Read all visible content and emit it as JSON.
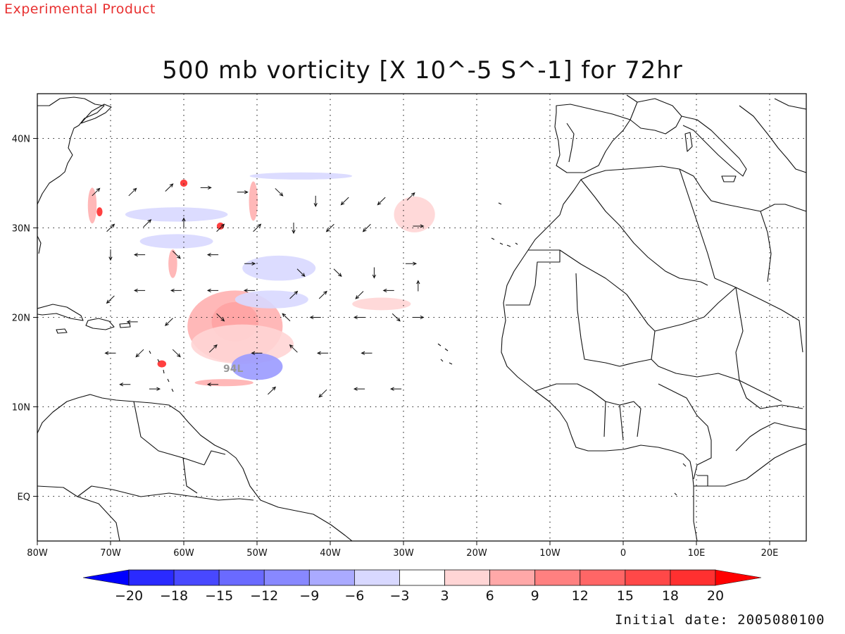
{
  "header": {
    "experimental_label": "Experimental Product",
    "title": "500 mb vorticity [X 10^-5 S^-1] for 72hr"
  },
  "footer": {
    "initial_date": "Initial date: 2005080100"
  },
  "map": {
    "region": "tropical-atlantic-west-africa",
    "lon_range": [
      -80,
      25
    ],
    "lat_range": [
      -5,
      45
    ],
    "grid": "dotted",
    "lon_ticks": [
      {
        "value": -80,
        "label": "80W"
      },
      {
        "value": -70,
        "label": "70W"
      },
      {
        "value": -60,
        "label": "60W"
      },
      {
        "value": -50,
        "label": "50W"
      },
      {
        "value": -40,
        "label": "40W"
      },
      {
        "value": -30,
        "label": "30W"
      },
      {
        "value": -20,
        "label": "20W"
      },
      {
        "value": -10,
        "label": "10W"
      },
      {
        "value": 0,
        "label": "0"
      },
      {
        "value": 10,
        "label": "10E"
      },
      {
        "value": 20,
        "label": "20E"
      }
    ],
    "lat_ticks": [
      {
        "value": 40,
        "label": "40N"
      },
      {
        "value": 30,
        "label": "30N"
      },
      {
        "value": 20,
        "label": "20N"
      },
      {
        "value": 10,
        "label": "10N"
      },
      {
        "value": 0,
        "label": "EQ"
      }
    ],
    "storm_label": "94L",
    "storm_center": {
      "lon": -53.5,
      "lat": 19.5
    },
    "vorticity_patches": [
      {
        "lon": -53,
        "lat": 19.5,
        "rlon": 3.2,
        "rlat": 2.2,
        "color": "#ff2b2b"
      },
      {
        "lon": -53,
        "lat": 19,
        "rlon": 6.5,
        "rlat": 4,
        "color": "#ffb0b0"
      },
      {
        "lon": -52,
        "lat": 17,
        "rlon": 7,
        "rlat": 2.2,
        "color": "#ffd5d5"
      },
      {
        "lon": -50,
        "lat": 14.5,
        "rlon": 3.5,
        "rlat": 1.5,
        "color": "#9a9aff"
      },
      {
        "lon": -47,
        "lat": 25.5,
        "rlon": 5,
        "rlat": 1.4,
        "color": "#d8d8ff"
      },
      {
        "lon": -48,
        "lat": 22,
        "rlon": 5,
        "rlat": 1,
        "color": "#d8d8ff"
      },
      {
        "lon": -28.5,
        "lat": 31.5,
        "rlon": 2.8,
        "rlat": 2,
        "color": "#ffd5d5"
      },
      {
        "lon": -33,
        "lat": 21.5,
        "rlon": 4,
        "rlat": 0.7,
        "color": "#ffd5d5"
      },
      {
        "lon": -44,
        "lat": 35.8,
        "rlon": 7,
        "rlat": 0.4,
        "color": "#d8d8ff"
      },
      {
        "lon": -61,
        "lat": 31.5,
        "rlon": 7,
        "rlat": 0.8,
        "color": "#d8d8ff"
      },
      {
        "lon": -61,
        "lat": 28.5,
        "rlon": 5,
        "rlat": 0.8,
        "color": "#d8d8ff"
      },
      {
        "lon": -72.5,
        "lat": 32.5,
        "rlon": 0.6,
        "rlat": 2,
        "color": "#ffb0b0"
      },
      {
        "lon": -61.5,
        "lat": 26,
        "rlon": 0.6,
        "rlat": 1.6,
        "color": "#ffb0b0"
      },
      {
        "lon": -50.5,
        "lat": 33,
        "rlon": 0.6,
        "rlat": 2.2,
        "color": "#ffb0b0"
      },
      {
        "lon": -63,
        "lat": 14.8,
        "rlon": 0.6,
        "rlat": 0.4,
        "color": "#ff2b2b"
      },
      {
        "lon": -60,
        "lat": 35,
        "rlon": 0.5,
        "rlat": 0.4,
        "color": "#ff2b2b"
      },
      {
        "lon": -55,
        "lat": 30.2,
        "rlon": 0.5,
        "rlat": 0.4,
        "color": "#ff2b2b"
      },
      {
        "lon": -71.5,
        "lat": 31.8,
        "rlon": 0.4,
        "rlat": 0.5,
        "color": "#ff2b2b"
      },
      {
        "lon": -54.5,
        "lat": 12.7,
        "rlon": 4,
        "rlat": 0.4,
        "color": "#ffb0b0"
      }
    ],
    "wind_vectors": [
      [
        -72,
        34,
        "NE"
      ],
      [
        -67,
        34,
        "NE"
      ],
      [
        -62,
        34.5,
        "NE"
      ],
      [
        -57,
        34.5,
        "E"
      ],
      [
        -52,
        34,
        "E"
      ],
      [
        -47,
        34,
        "SE"
      ],
      [
        -42,
        33,
        "S"
      ],
      [
        -38,
        33,
        "SW"
      ],
      [
        -33,
        33,
        "SW"
      ],
      [
        -29,
        33.5,
        "NE"
      ],
      [
        -70,
        30,
        "NE"
      ],
      [
        -65,
        30.5,
        "NE"
      ],
      [
        -60,
        30.5,
        "N"
      ],
      [
        -55,
        30,
        "NE"
      ],
      [
        -50,
        30,
        "NE"
      ],
      [
        -45,
        30,
        "S"
      ],
      [
        -40,
        30,
        "SW"
      ],
      [
        -35,
        30,
        "SW"
      ],
      [
        -28,
        30.2,
        "E"
      ],
      [
        -70,
        27,
        "S"
      ],
      [
        -66,
        27,
        "W"
      ],
      [
        -61,
        27,
        "SE"
      ],
      [
        -56,
        27,
        "W"
      ],
      [
        -51,
        26,
        "E"
      ],
      [
        -44,
        25,
        "SE"
      ],
      [
        -39,
        25,
        "SE"
      ],
      [
        -34,
        25,
        "S"
      ],
      [
        -29,
        26,
        "E"
      ],
      [
        -70,
        22,
        "SW"
      ],
      [
        -66,
        23,
        "W"
      ],
      [
        -61,
        23,
        "W"
      ],
      [
        -56,
        23,
        "W"
      ],
      [
        -51,
        23,
        "W"
      ],
      [
        -45,
        22.5,
        "NE"
      ],
      [
        -41,
        22.5,
        "NE"
      ],
      [
        -36,
        22.5,
        "SW"
      ],
      [
        -32,
        23,
        "W"
      ],
      [
        -28,
        23.5,
        "N"
      ],
      [
        -67,
        19.5,
        "W"
      ],
      [
        -62,
        19.5,
        "SW"
      ],
      [
        -55,
        20,
        "SE"
      ],
      [
        -46,
        20,
        "NW"
      ],
      [
        -42,
        20,
        "W"
      ],
      [
        -36,
        20,
        "W"
      ],
      [
        -31,
        20,
        "SE"
      ],
      [
        -28,
        20,
        "E"
      ],
      [
        -70,
        16,
        "W"
      ],
      [
        -66,
        16,
        "SW"
      ],
      [
        -61,
        16,
        "SE"
      ],
      [
        -56,
        16.5,
        "NE"
      ],
      [
        -50,
        16,
        "W"
      ],
      [
        -45,
        16.5,
        "NW"
      ],
      [
        -41,
        16,
        "W"
      ],
      [
        -35,
        16,
        "W"
      ],
      [
        -68,
        12.5,
        "W"
      ],
      [
        -64,
        12,
        "E"
      ],
      [
        -56,
        12.5,
        "W"
      ],
      [
        -48,
        11.8,
        "NE"
      ],
      [
        -41,
        11.5,
        "SW"
      ],
      [
        -36,
        12,
        "W"
      ],
      [
        -31,
        12,
        "W"
      ]
    ]
  },
  "colorbar": {
    "labels": [
      "-20",
      "-18",
      "-15",
      "-12",
      "-9",
      "-6",
      "-3",
      "3",
      "6",
      "9",
      "12",
      "15",
      "18",
      "20"
    ],
    "colors": [
      "#0000ff",
      "#2a2aff",
      "#4848ff",
      "#6a6aff",
      "#8888ff",
      "#aaaaff",
      "#d8d8ff",
      "#ffffff",
      "#ffd5d5",
      "#ffa8a8",
      "#ff8080",
      "#ff6666",
      "#ff4848",
      "#ff3030",
      "#ff0000"
    ]
  }
}
